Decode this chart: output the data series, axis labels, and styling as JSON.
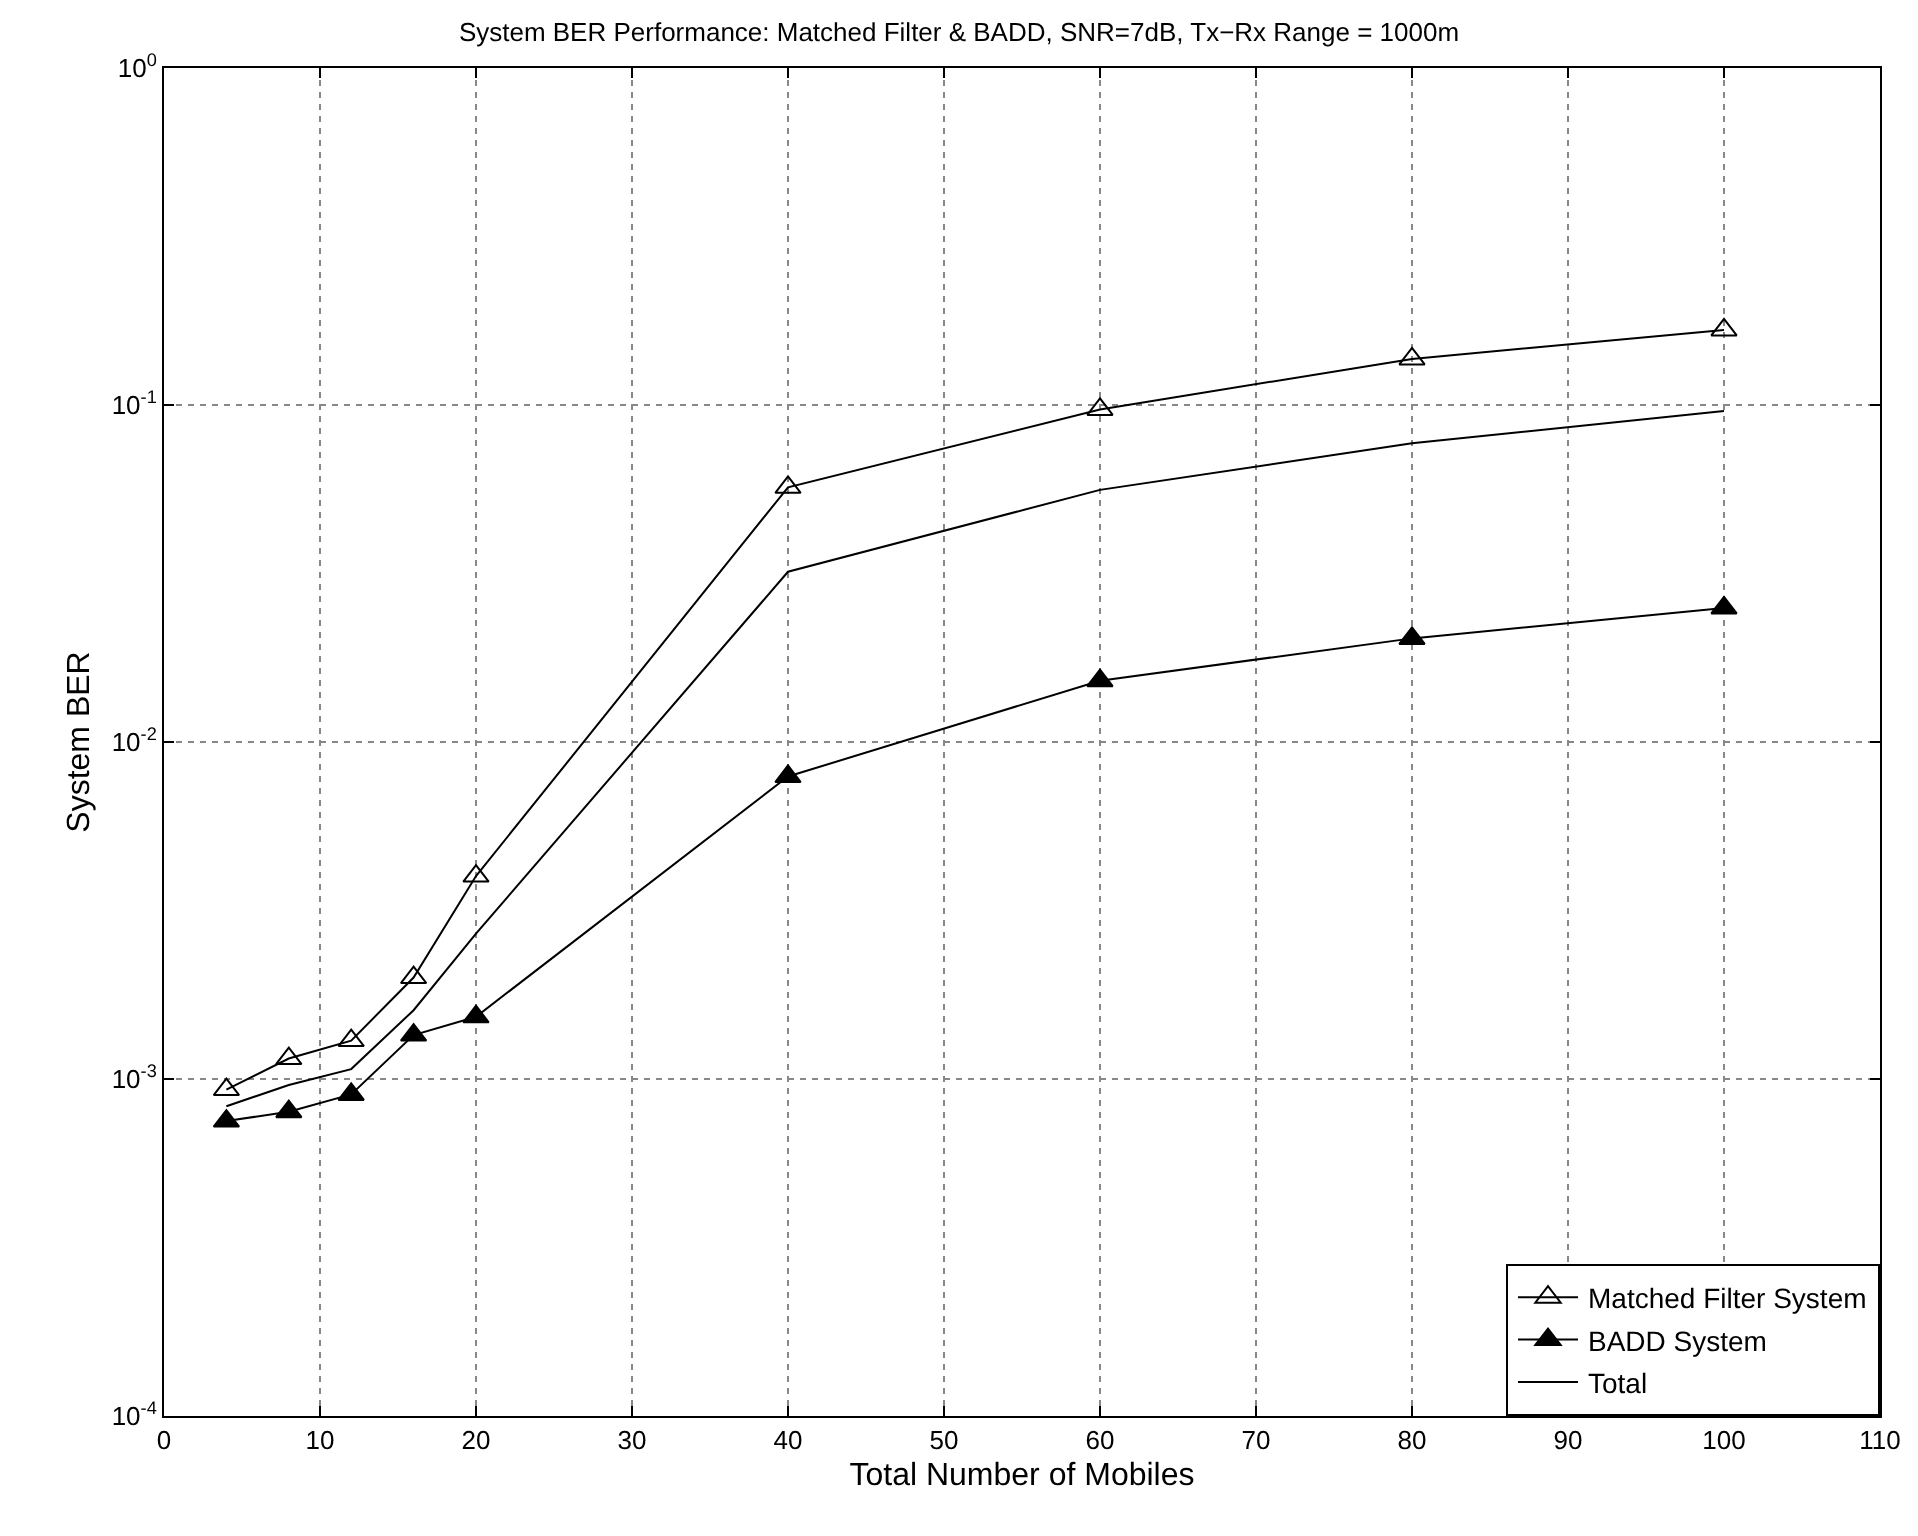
{
  "chart_data": {
    "type": "line",
    "title": "System BER Performance: Matched Filter & BADD, SNR=7dB, Tx−Rx Range = 1000m",
    "xlabel": "Total Number of Mobiles",
    "ylabel": "System BER",
    "x": [
      4,
      8,
      12,
      16,
      20,
      40,
      60,
      80,
      100
    ],
    "series": [
      {
        "name": "Matched Filter System",
        "color": "#000000",
        "marker": "triangle-open",
        "values": [
          0.00093,
          0.00115,
          0.0013,
          0.002,
          0.004,
          0.057,
          0.097,
          0.137,
          0.167
        ]
      },
      {
        "name": "BADD System",
        "color": "#000000",
        "marker": "triangle",
        "values": [
          0.00075,
          0.0008,
          0.0009,
          0.00135,
          0.00153,
          0.0079,
          0.0152,
          0.0203,
          0.025
        ]
      },
      {
        "name": "Total",
        "color": "#000000",
        "marker": "none",
        "values": [
          0.00083,
          0.00096,
          0.00107,
          0.0016,
          0.0027,
          0.032,
          0.056,
          0.077,
          0.096
        ]
      }
    ],
    "log": "y",
    "xlim": [
      0,
      110
    ],
    "xticks": [
      0,
      10,
      20,
      30,
      40,
      50,
      60,
      70,
      80,
      90,
      100,
      110
    ],
    "ylim": [
      0.0001,
      1
    ],
    "yticks": [
      {
        "value": 0.0001,
        "label": "10$^{-4}$"
      },
      {
        "value": 0.001,
        "label": "10$^{-3}$"
      },
      {
        "value": 0.01,
        "label": "10$^{-2}$"
      },
      {
        "value": 0.1,
        "label": "10$^{-1}$"
      },
      {
        "value": 1,
        "label": "10$^{0}$"
      }
    ],
    "grid": true,
    "legend": "bottom right",
    "line_style": "solid"
  }
}
